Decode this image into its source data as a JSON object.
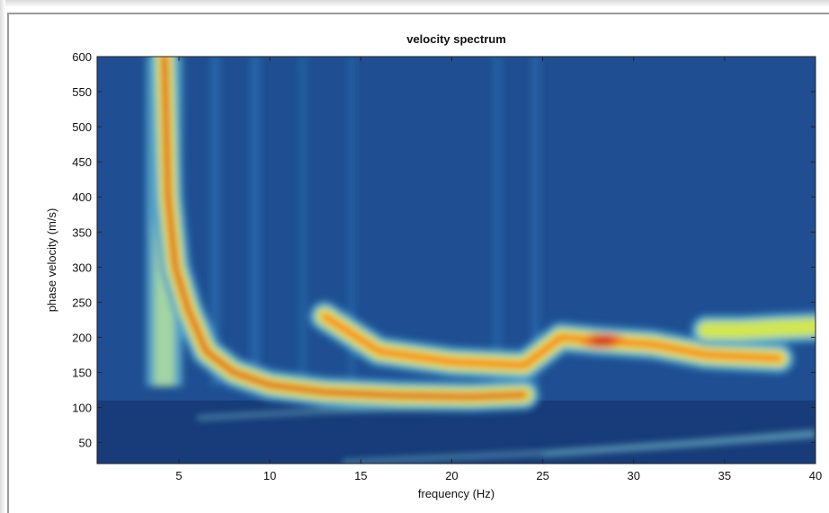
{
  "chart_data": {
    "type": "heatmap",
    "title": "velocity spectrum",
    "xlabel": "frequency (Hz)",
    "ylabel": "phase velocity (m/s)",
    "xlim": [
      0.5,
      40
    ],
    "ylim": [
      20,
      600
    ],
    "xticks": [
      5,
      10,
      15,
      20,
      25,
      30,
      35,
      40
    ],
    "yticks": [
      50,
      100,
      150,
      200,
      250,
      300,
      350,
      400,
      450,
      500,
      550,
      600
    ],
    "colormap": [
      "#0a1e6e",
      "#1e5aa5",
      "#3c91c8",
      "#78c3c3",
      "#d2e650",
      "#fff03c",
      "#f57814",
      "#c81e1e"
    ],
    "ridges": [
      {
        "name": "fundamental mode",
        "points": [
          [
            4.2,
            600
          ],
          [
            4.4,
            400
          ],
          [
            4.8,
            300
          ],
          [
            5.5,
            240
          ],
          [
            6.5,
            180
          ],
          [
            8,
            150
          ],
          [
            10,
            132
          ],
          [
            13,
            122
          ],
          [
            17,
            117
          ],
          [
            21,
            115
          ],
          [
            24,
            118
          ]
        ],
        "peak": 1.0
      },
      {
        "name": "higher mode",
        "points": [
          [
            13,
            230
          ],
          [
            16,
            180
          ],
          [
            20,
            165
          ],
          [
            24,
            160
          ],
          [
            26,
            200
          ],
          [
            28,
            195
          ],
          [
            31,
            190
          ],
          [
            34,
            175
          ],
          [
            38,
            170
          ]
        ],
        "peak": 0.85
      },
      {
        "name": "upper ridge",
        "points": [
          [
            34,
            210
          ],
          [
            36,
            210
          ],
          [
            38,
            213
          ],
          [
            40,
            215
          ]
        ],
        "peak": 0.55
      }
    ]
  }
}
